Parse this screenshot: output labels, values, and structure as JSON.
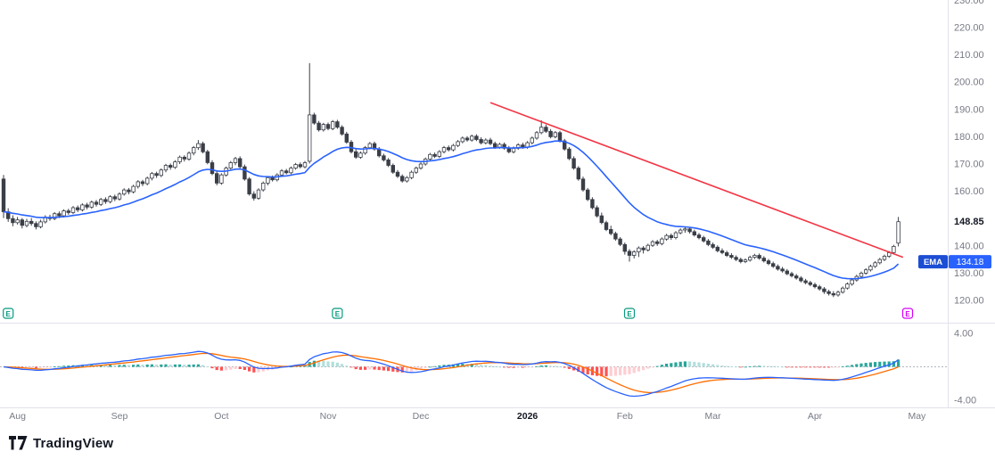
{
  "footer": {
    "brand": "TradingView"
  },
  "colors": {
    "up_fill": "#ffffff",
    "down_fill": "#3a3e47",
    "candle_border": "#3a3e47",
    "ema": "#2962ff",
    "ema_badge_dark": "#1c4dd4",
    "trendline": "#f23645",
    "macd_line": "#2962ff",
    "macd_signal": "#ff6d00",
    "hist_up_strong": "#26a69a",
    "hist_up_weak": "#b2dfdb",
    "hist_down_strong": "#ff5252",
    "hist_down_weak": "#ffcdd2",
    "earnings": "#089981",
    "earnings_upcoming": "#d500f9",
    "axis_text": "#787b86",
    "grid": "#e0e3eb",
    "last_price": "#131722"
  },
  "chart_data": {
    "type": "candlestick",
    "title": "",
    "last_price": {
      "value": 148.85,
      "label": "148.85"
    },
    "y_axis": {
      "ticks": [
        {
          "price": 230,
          "label": "230.00"
        },
        {
          "price": 220,
          "label": "220.00"
        },
        {
          "price": 210,
          "label": "210.00"
        },
        {
          "price": 200,
          "label": "200.00"
        },
        {
          "price": 190,
          "label": "190.00"
        },
        {
          "price": 180,
          "label": "180.00"
        },
        {
          "price": 170,
          "label": "170.00"
        },
        {
          "price": 160,
          "label": "160.00"
        },
        {
          "price": 140,
          "label": "140.00"
        },
        {
          "price": 130,
          "label": "130.00"
        },
        {
          "price": 120,
          "label": "120.00"
        }
      ]
    },
    "x_axis": {
      "months": [
        {
          "label": "Aug",
          "index": 3
        },
        {
          "label": "Sep",
          "index": 25
        },
        {
          "label": "Oct",
          "index": 47
        },
        {
          "label": "Nov",
          "index": 70
        },
        {
          "label": "Dec",
          "index": 90
        },
        {
          "label": "2026",
          "index": 113,
          "bold": true
        },
        {
          "label": "Feb",
          "index": 134
        },
        {
          "label": "Mar",
          "index": 153
        },
        {
          "label": "Apr",
          "index": 175
        },
        {
          "label": "May",
          "index": 197
        }
      ]
    },
    "overlays": {
      "ema": {
        "label": "EMA",
        "period": 21,
        "value": 134.18,
        "value_label": "134.18"
      },
      "trendline": {
        "from": {
          "index": 105,
          "price": 192.5
        },
        "to": {
          "index": 194,
          "price": 135.8
        }
      }
    },
    "earnings": [
      {
        "index": 1,
        "status": "reported"
      },
      {
        "index": 72,
        "status": "reported"
      },
      {
        "index": 135,
        "status": "reported"
      },
      {
        "index": 195,
        "status": "upcoming"
      }
    ],
    "macd": {
      "fast": 12,
      "slow": 26,
      "signal_period": 9,
      "axis_labels": [
        {
          "v": 4,
          "label": "4.00"
        },
        {
          "v": -4,
          "label": "-4.00"
        }
      ]
    },
    "candles": [
      [
        164.5,
        166.0,
        150.2,
        152.5
      ],
      [
        152.5,
        153.8,
        148.8,
        150.0
      ],
      [
        150.0,
        151.2,
        147.2,
        148.5
      ],
      [
        148.5,
        150.6,
        147.8,
        149.5
      ],
      [
        149.5,
        150.2,
        146.4,
        147.5
      ],
      [
        147.5,
        149.9,
        146.8,
        149.0
      ],
      [
        149.0,
        150.2,
        147.4,
        148.2
      ],
      [
        148.2,
        149.0,
        146.0,
        147.0
      ],
      [
        147.0,
        149.6,
        146.4,
        148.8
      ],
      [
        148.8,
        151.2,
        148.2,
        150.5
      ],
      [
        150.5,
        151.4,
        149.2,
        150.0
      ],
      [
        150.0,
        152.4,
        149.4,
        151.8
      ],
      [
        151.8,
        152.6,
        150.2,
        151.0
      ],
      [
        151.0,
        153.4,
        150.4,
        152.8
      ],
      [
        152.8,
        153.6,
        151.4,
        152.2
      ],
      [
        152.2,
        154.6,
        151.6,
        154.0
      ],
      [
        154.0,
        154.8,
        152.4,
        153.2
      ],
      [
        153.2,
        155.6,
        152.6,
        155.0
      ],
      [
        155.0,
        155.8,
        153.4,
        154.2
      ],
      [
        154.2,
        156.6,
        153.6,
        156.0
      ],
      [
        156.0,
        156.8,
        154.4,
        155.2
      ],
      [
        155.2,
        157.6,
        154.6,
        157.0
      ],
      [
        157.0,
        157.8,
        155.4,
        156.2
      ],
      [
        156.2,
        158.6,
        155.6,
        158.0
      ],
      [
        158.0,
        158.8,
        156.4,
        157.2
      ],
      [
        157.2,
        159.6,
        156.6,
        159.0
      ],
      [
        159.0,
        161.1,
        158.4,
        160.5
      ],
      [
        160.5,
        161.2,
        158.9,
        159.8
      ],
      [
        159.8,
        162.4,
        159.2,
        161.8
      ],
      [
        161.8,
        164.1,
        161.0,
        163.5
      ],
      [
        163.5,
        164.2,
        161.9,
        162.8
      ],
      [
        162.8,
        165.4,
        162.2,
        164.8
      ],
      [
        164.8,
        167.1,
        164.0,
        166.5
      ],
      [
        166.5,
        167.2,
        164.9,
        165.8
      ],
      [
        165.8,
        168.4,
        165.2,
        167.8
      ],
      [
        167.8,
        170.1,
        167.0,
        169.5
      ],
      [
        169.5,
        170.2,
        167.9,
        168.8
      ],
      [
        168.8,
        171.4,
        168.2,
        170.8
      ],
      [
        170.8,
        173.1,
        170.0,
        172.5
      ],
      [
        172.5,
        173.2,
        170.9,
        171.8
      ],
      [
        171.8,
        174.6,
        171.2,
        174.0
      ],
      [
        174.0,
        176.6,
        173.2,
        176.0
      ],
      [
        176.0,
        178.8,
        175.2,
        177.5
      ],
      [
        177.5,
        178.2,
        173.9,
        174.5
      ],
      [
        174.5,
        175.2,
        169.9,
        170.5
      ],
      [
        170.5,
        171.4,
        165.9,
        166.5
      ],
      [
        166.5,
        167.4,
        162.2,
        163.0
      ],
      [
        163.0,
        166.6,
        162.4,
        166.0
      ],
      [
        166.0,
        169.1,
        165.4,
        168.5
      ],
      [
        168.5,
        171.1,
        167.9,
        170.5
      ],
      [
        170.5,
        172.6,
        169.6,
        172.0
      ],
      [
        172.0,
        172.8,
        168.4,
        169.0
      ],
      [
        169.0,
        169.8,
        163.9,
        164.5
      ],
      [
        164.5,
        165.2,
        158.4,
        159.0
      ],
      [
        159.0,
        160.0,
        156.6,
        157.5
      ],
      [
        157.5,
        161.1,
        156.9,
        160.5
      ],
      [
        160.5,
        163.6,
        159.9,
        163.0
      ],
      [
        163.0,
        165.6,
        162.2,
        165.0
      ],
      [
        165.0,
        165.8,
        163.6,
        164.2
      ],
      [
        164.2,
        166.6,
        163.6,
        166.0
      ],
      [
        166.0,
        168.1,
        165.4,
        167.5
      ],
      [
        167.5,
        168.2,
        166.2,
        166.8
      ],
      [
        166.8,
        169.1,
        166.2,
        168.5
      ],
      [
        168.5,
        170.4,
        167.9,
        169.8
      ],
      [
        169.8,
        170.6,
        168.4,
        169.0
      ],
      [
        169.0,
        171.1,
        168.4,
        170.5
      ],
      [
        171.0,
        207.0,
        170.2,
        188.0
      ],
      [
        188.0,
        188.8,
        184.4,
        185.0
      ],
      [
        185.0,
        185.8,
        181.9,
        182.5
      ],
      [
        182.5,
        185.1,
        181.9,
        184.5
      ],
      [
        184.5,
        185.2,
        182.4,
        183.0
      ],
      [
        183.0,
        186.1,
        182.4,
        185.5
      ],
      [
        185.5,
        186.2,
        182.9,
        183.5
      ],
      [
        183.5,
        184.2,
        180.4,
        181.0
      ],
      [
        181.0,
        181.8,
        177.4,
        178.0
      ],
      [
        178.0,
        178.8,
        173.9,
        174.5
      ],
      [
        174.5,
        175.4,
        171.9,
        172.5
      ],
      [
        172.5,
        174.6,
        171.9,
        174.0
      ],
      [
        174.0,
        176.6,
        173.4,
        176.0
      ],
      [
        176.0,
        178.1,
        175.4,
        177.5
      ],
      [
        177.5,
        178.2,
        174.9,
        175.5
      ],
      [
        175.5,
        176.2,
        172.4,
        173.0
      ],
      [
        173.0,
        173.8,
        170.9,
        171.5
      ],
      [
        171.5,
        172.2,
        168.9,
        169.5
      ],
      [
        169.5,
        170.2,
        166.4,
        167.0
      ],
      [
        167.0,
        167.8,
        164.9,
        165.5
      ],
      [
        165.5,
        166.2,
        163.2,
        163.8
      ],
      [
        163.8,
        165.6,
        163.2,
        165.0
      ],
      [
        165.0,
        167.6,
        164.4,
        167.0
      ],
      [
        167.0,
        169.1,
        166.4,
        168.5
      ],
      [
        168.5,
        170.6,
        167.9,
        170.0
      ],
      [
        170.0,
        172.4,
        169.4,
        171.8
      ],
      [
        171.8,
        174.1,
        171.2,
        173.5
      ],
      [
        173.5,
        174.2,
        172.2,
        172.8
      ],
      [
        172.8,
        175.1,
        172.2,
        174.5
      ],
      [
        174.5,
        176.6,
        173.9,
        176.0
      ],
      [
        176.0,
        176.8,
        174.6,
        175.2
      ],
      [
        175.2,
        177.4,
        174.6,
        176.8
      ],
      [
        176.8,
        178.8,
        176.2,
        178.2
      ],
      [
        178.2,
        180.1,
        177.6,
        179.5
      ],
      [
        179.5,
        180.2,
        178.2,
        178.8
      ],
      [
        178.8,
        180.8,
        178.2,
        180.2
      ],
      [
        180.2,
        180.9,
        178.4,
        179.0
      ],
      [
        179.0,
        179.8,
        177.2,
        177.8
      ],
      [
        177.8,
        179.4,
        177.2,
        178.8
      ],
      [
        178.8,
        179.6,
        176.9,
        177.5
      ],
      [
        177.5,
        178.2,
        175.6,
        176.2
      ],
      [
        176.2,
        177.8,
        175.6,
        177.2
      ],
      [
        177.2,
        177.9,
        175.2,
        175.8
      ],
      [
        175.8,
        176.6,
        173.9,
        174.5
      ],
      [
        174.5,
        176.4,
        173.9,
        175.8
      ],
      [
        175.8,
        177.6,
        175.2,
        177.0
      ],
      [
        177.0,
        177.8,
        175.6,
        176.2
      ],
      [
        176.2,
        178.4,
        175.6,
        177.8
      ],
      [
        177.8,
        180.1,
        177.2,
        179.5
      ],
      [
        179.5,
        182.1,
        178.9,
        181.5
      ],
      [
        181.5,
        186.0,
        180.9,
        183.5
      ],
      [
        183.5,
        184.4,
        181.4,
        182.0
      ],
      [
        182.0,
        182.8,
        179.4,
        180.0
      ],
      [
        180.0,
        182.1,
        179.4,
        181.5
      ],
      [
        181.5,
        182.2,
        177.9,
        178.5
      ],
      [
        178.5,
        179.2,
        174.9,
        175.5
      ],
      [
        175.5,
        176.2,
        171.4,
        172.0
      ],
      [
        172.0,
        172.8,
        167.9,
        168.5
      ],
      [
        168.5,
        169.2,
        163.9,
        164.5
      ],
      [
        164.5,
        165.4,
        159.9,
        160.5
      ],
      [
        160.5,
        161.2,
        156.4,
        157.0
      ],
      [
        157.0,
        157.8,
        153.4,
        154.0
      ],
      [
        154.0,
        154.8,
        150.4,
        151.0
      ],
      [
        151.0,
        152.2,
        147.9,
        148.5
      ],
      [
        148.5,
        149.2,
        145.4,
        146.0
      ],
      [
        146.0,
        147.4,
        143.9,
        144.5
      ],
      [
        144.5,
        145.2,
        141.9,
        142.5
      ],
      [
        142.5,
        143.2,
        139.9,
        140.5
      ],
      [
        140.5,
        141.2,
        136.8,
        138.0
      ],
      [
        138.0,
        138.8,
        134.2,
        136.5
      ],
      [
        136.5,
        138.4,
        135.4,
        137.8
      ],
      [
        137.8,
        139.8,
        135.9,
        139.2
      ],
      [
        139.2,
        139.9,
        137.2,
        138.5
      ],
      [
        138.5,
        140.8,
        137.9,
        140.2
      ],
      [
        140.2,
        142.1,
        139.6,
        141.5
      ],
      [
        141.5,
        142.2,
        140.0,
        140.8
      ],
      [
        140.8,
        143.1,
        140.2,
        142.5
      ],
      [
        142.5,
        144.4,
        141.9,
        143.8
      ],
      [
        143.8,
        144.5,
        142.2,
        143.0
      ],
      [
        143.0,
        145.4,
        142.4,
        144.8
      ],
      [
        144.8,
        146.4,
        144.2,
        145.8
      ],
      [
        145.8,
        146.9,
        144.8,
        146.2
      ],
      [
        146.2,
        146.9,
        144.5,
        145.2
      ],
      [
        145.2,
        145.9,
        143.4,
        144.0
      ],
      [
        144.0,
        144.7,
        142.4,
        143.0
      ],
      [
        143.0,
        143.7,
        141.2,
        141.8
      ],
      [
        141.8,
        142.5,
        139.9,
        140.5
      ],
      [
        140.5,
        141.2,
        138.9,
        139.5
      ],
      [
        139.5,
        140.2,
        137.6,
        138.2
      ],
      [
        138.2,
        139.1,
        136.9,
        137.5
      ],
      [
        137.5,
        138.2,
        135.9,
        136.5
      ],
      [
        136.5,
        137.3,
        135.2,
        135.8
      ],
      [
        135.8,
        136.5,
        134.4,
        135.0
      ],
      [
        135.0,
        135.7,
        133.6,
        134.2
      ],
      [
        134.2,
        135.4,
        133.7,
        134.8
      ],
      [
        134.8,
        136.4,
        134.2,
        135.8
      ],
      [
        135.8,
        137.1,
        135.2,
        136.5
      ],
      [
        136.5,
        137.2,
        134.9,
        135.5
      ],
      [
        135.5,
        136.2,
        133.9,
        134.5
      ],
      [
        134.5,
        135.2,
        132.9,
        133.5
      ],
      [
        133.5,
        134.2,
        131.9,
        132.5
      ],
      [
        132.5,
        133.2,
        130.9,
        131.5
      ],
      [
        131.5,
        132.3,
        130.2,
        130.8
      ],
      [
        130.8,
        131.5,
        129.2,
        129.8
      ],
      [
        129.8,
        130.5,
        128.4,
        129.0
      ],
      [
        129.0,
        129.7,
        127.6,
        128.2
      ],
      [
        128.2,
        128.9,
        126.6,
        127.2
      ],
      [
        127.2,
        127.9,
        125.9,
        126.5
      ],
      [
        126.5,
        127.2,
        125.2,
        125.8
      ],
      [
        125.8,
        126.5,
        124.4,
        125.0
      ],
      [
        125.0,
        125.7,
        123.6,
        124.2
      ],
      [
        124.2,
        124.9,
        122.4,
        123.2
      ],
      [
        123.2,
        123.9,
        121.8,
        122.5
      ],
      [
        122.5,
        123.4,
        121.2,
        122.0
      ],
      [
        122.0,
        123.6,
        121.4,
        123.0
      ],
      [
        123.0,
        125.1,
        122.5,
        124.5
      ],
      [
        124.5,
        126.6,
        124.0,
        126.0
      ],
      [
        126.0,
        128.1,
        125.4,
        127.5
      ],
      [
        127.5,
        129.4,
        126.9,
        128.8
      ],
      [
        128.8,
        130.6,
        128.2,
        130.0
      ],
      [
        130.0,
        131.8,
        129.4,
        131.2
      ],
      [
        131.2,
        133.1,
        130.6,
        132.5
      ],
      [
        132.5,
        134.4,
        131.9,
        133.8
      ],
      [
        133.8,
        135.6,
        133.2,
        135.0
      ],
      [
        135.0,
        136.8,
        134.4,
        136.2
      ],
      [
        136.2,
        138.1,
        135.6,
        137.5
      ],
      [
        137.5,
        140.4,
        136.9,
        139.8
      ],
      [
        141.0,
        150.6,
        139.8,
        148.85
      ]
    ]
  }
}
